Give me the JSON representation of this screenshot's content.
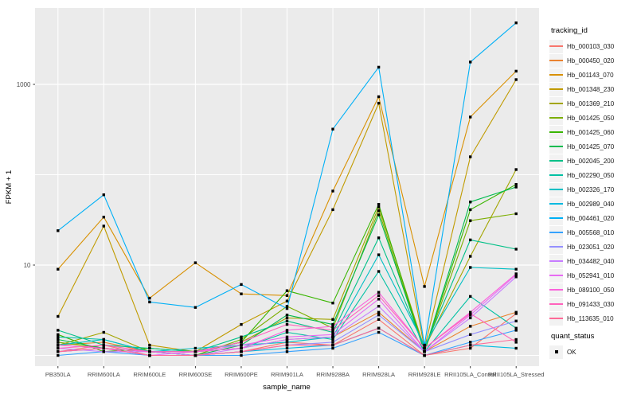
{
  "figure": {
    "background": "#FFFFFF",
    "panel_background": "#EBEBEB",
    "gridline_color": "#FFFFFF",
    "tick_label_color": "#4D4D4D",
    "axis_title_color": "#000000",
    "point_color": "#000000"
  },
  "chart_data": {
    "type": "line",
    "title": "",
    "xlabel": "sample_name",
    "ylabel": "FPKM + 1",
    "y_scale": "log10",
    "point_shape": "square",
    "quant_status_all": "OK",
    "y_ticks": [
      {
        "value": 10,
        "label": "10"
      },
      {
        "value": 1000,
        "label": "1000"
      }
    ],
    "y_gridlines_major": [
      10,
      1000
    ],
    "y_gridlines_minor": [
      1,
      100
    ],
    "ylim": [
      0.75,
      7500
    ],
    "categories": [
      "PB350LA",
      "RRIM600LA",
      "RRIM600LE",
      "RRIM600SE",
      "RRIM600PE",
      "RRIM901LA",
      "RRIM928BA",
      "RRIM928LA",
      "RRIM928LE",
      "RRII105LA_Control",
      "RRII105LA_Stressed"
    ],
    "series": [
      {
        "name": "Hb_000103_030",
        "color": "#F8766D",
        "values": [
          1.1,
          1.3,
          1.0,
          1.0,
          1.1,
          1.4,
          1.3,
          2.5,
          1.0,
          1.2,
          2.9
        ]
      },
      {
        "name": "Hb_000450_020",
        "color": "#EA8331",
        "values": [
          1.3,
          1.4,
          1.1,
          1.1,
          1.2,
          1.5,
          1.6,
          3.0,
          1.1,
          2.1,
          3.0
        ]
      },
      {
        "name": "Hb_001143_070",
        "color": "#D89000",
        "values": [
          9.0,
          34,
          4.3,
          10.6,
          4.8,
          4.6,
          66,
          730,
          5.8,
          435,
          1400
        ]
      },
      {
        "name": "Hb_001348_230",
        "color": "#C09B00",
        "values": [
          2.7,
          27,
          1.3,
          1.1,
          2.2,
          4.0,
          41,
          620,
          1.2,
          158,
          1130
        ]
      },
      {
        "name": "Hb_001369_210",
        "color": "#A3A500",
        "values": [
          1.3,
          1.8,
          1.1,
          1.1,
          1.4,
          2.6,
          2.5,
          44,
          1.2,
          12.5,
          114
        ]
      },
      {
        "name": "Hb_001425_050",
        "color": "#7CAE00",
        "values": [
          1.4,
          1.2,
          1.1,
          1.0,
          1.5,
          3.5,
          2.0,
          40,
          1.1,
          31,
          37
        ]
      },
      {
        "name": "Hb_001425_060",
        "color": "#39B600",
        "values": [
          1.7,
          1.1,
          1.2,
          1.1,
          1.4,
          5.2,
          3.8,
          47,
          1.1,
          41,
          78
        ]
      },
      {
        "name": "Hb_001425_070",
        "color": "#00BB4E",
        "values": [
          1.5,
          1.2,
          1.1,
          1.0,
          1.3,
          2.8,
          2.2,
          36,
          1.1,
          50,
          73
        ]
      },
      {
        "name": "Hb_002045_200",
        "color": "#00C087",
        "values": [
          1.9,
          1.3,
          1.2,
          1.1,
          1.6,
          2.4,
          1.8,
          20,
          1.2,
          19,
          15
        ]
      },
      {
        "name": "Hb_002290_050",
        "color": "#00C1A3",
        "values": [
          1.6,
          1.5,
          1.1,
          1.1,
          1.2,
          1.8,
          1.5,
          8.5,
          1.1,
          4.5,
          2.0
        ]
      },
      {
        "name": "Hb_002326_170",
        "color": "#00BFC4",
        "values": [
          1.3,
          1.5,
          1.1,
          1.2,
          1.3,
          1.4,
          1.6,
          13,
          1.3,
          9.4,
          9.0
        ]
      },
      {
        "name": "Hb_002989_040",
        "color": "#00BAE0",
        "values": [
          1.1,
          1.2,
          1.0,
          1.0,
          1.1,
          1.2,
          1.3,
          2.0,
          1.0,
          1.3,
          1.2
        ]
      },
      {
        "name": "Hb_004461_020",
        "color": "#00B0F6",
        "values": [
          24,
          60,
          3.9,
          3.4,
          6.1,
          3.3,
          320,
          1550,
          1.3,
          1770,
          4800
        ]
      },
      {
        "name": "Hb_005568_010",
        "color": "#35A2FF",
        "values": [
          1.0,
          1.1,
          1.0,
          1.0,
          1.0,
          1.1,
          1.2,
          1.8,
          1.0,
          1.4,
          1.9
        ]
      },
      {
        "name": "Hb_023051_020",
        "color": "#9590FF",
        "values": [
          1.1,
          1.2,
          1.0,
          1.0,
          1.1,
          1.3,
          1.4,
          2.8,
          1.1,
          1.7,
          2.4
        ]
      },
      {
        "name": "Hb_034482_040",
        "color": "#C77CFF",
        "values": [
          1.2,
          1.1,
          1.1,
          1.0,
          1.2,
          1.5,
          1.6,
          3.5,
          1.1,
          2.6,
          7.4
        ]
      },
      {
        "name": "Hb_052941_010",
        "color": "#E76BF3",
        "values": [
          1.1,
          1.2,
          1.0,
          1.1,
          1.3,
          1.6,
          1.7,
          4.2,
          1.1,
          2.8,
          7.8
        ]
      },
      {
        "name": "Hb_089100_050",
        "color": "#FA62DB",
        "values": [
          1.3,
          1.2,
          1.1,
          1.1,
          1.2,
          1.9,
          2.1,
          5.0,
          1.2,
          3.0,
          8.0
        ]
      },
      {
        "name": "Hb_091433_030",
        "color": "#FF62BC",
        "values": [
          1.2,
          1.3,
          1.1,
          1.1,
          1.4,
          2.2,
          1.9,
          4.6,
          1.2,
          2.9,
          1.4
        ]
      },
      {
        "name": "Hb_113635_010",
        "color": "#FF6A98",
        "values": [
          1.1,
          1.2,
          1.0,
          1.0,
          1.1,
          1.3,
          1.3,
          2.0,
          1.0,
          1.3,
          1.5
        ]
      }
    ]
  },
  "legend": {
    "tracking_title": "tracking_id",
    "quant_title": "quant_status",
    "key_background": "#F2F2F2",
    "quant_items": [
      {
        "label": "OK",
        "color": "#000000"
      }
    ]
  }
}
